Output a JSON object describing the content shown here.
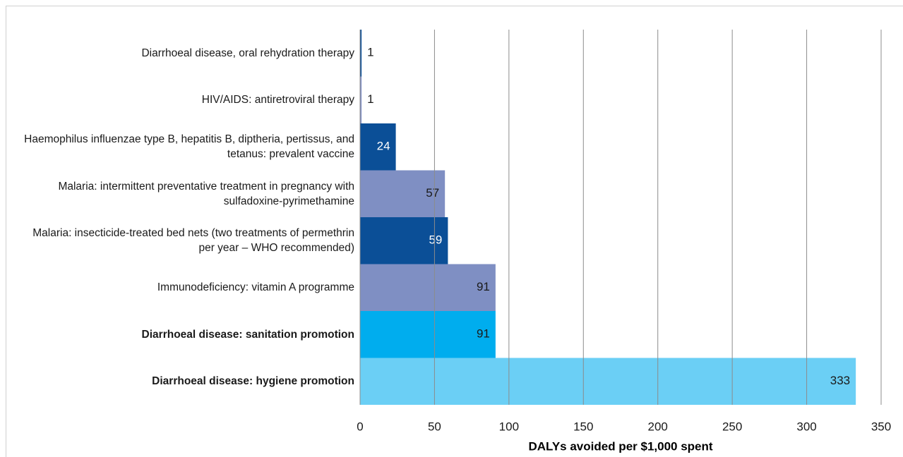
{
  "chart_data": {
    "type": "bar",
    "orientation": "horizontal",
    "categories": [
      "Diarrhoeal disease, oral rehydration therapy",
      "HIV/AIDS: antiretroviral therapy",
      "Haemophilus influenzae type B, hepatitis B, diptheria, pertissus, and tetanus: prevalent vaccine",
      "Malaria: intermittent preventative treatment in pregnancy with sulfadoxine-pyrimethamine",
      "Malaria: insecticide-treated bed nets (two treatments of permethrin per year – WHO recommended)",
      "Immunodeficiency: vitamin A programme",
      "Diarrhoeal disease: sanitation promotion",
      "Diarrhoeal disease: hygiene promotion"
    ],
    "values": [
      1,
      1,
      24,
      57,
      59,
      91,
      91,
      333
    ],
    "colors": [
      "#0b4f97",
      "#7f8fc3",
      "#0b4f97",
      "#7f8fc3",
      "#0b4f97",
      "#7f8fc3",
      "#00adee",
      "#6bcff5"
    ],
    "bold": [
      false,
      false,
      false,
      false,
      false,
      false,
      true,
      true
    ],
    "xlabel": "DALYs avoided per $1,000 spent",
    "xlim": [
      0,
      350
    ],
    "xticks": [
      0,
      50,
      100,
      150,
      200,
      250,
      300,
      350
    ],
    "grid": true
  }
}
